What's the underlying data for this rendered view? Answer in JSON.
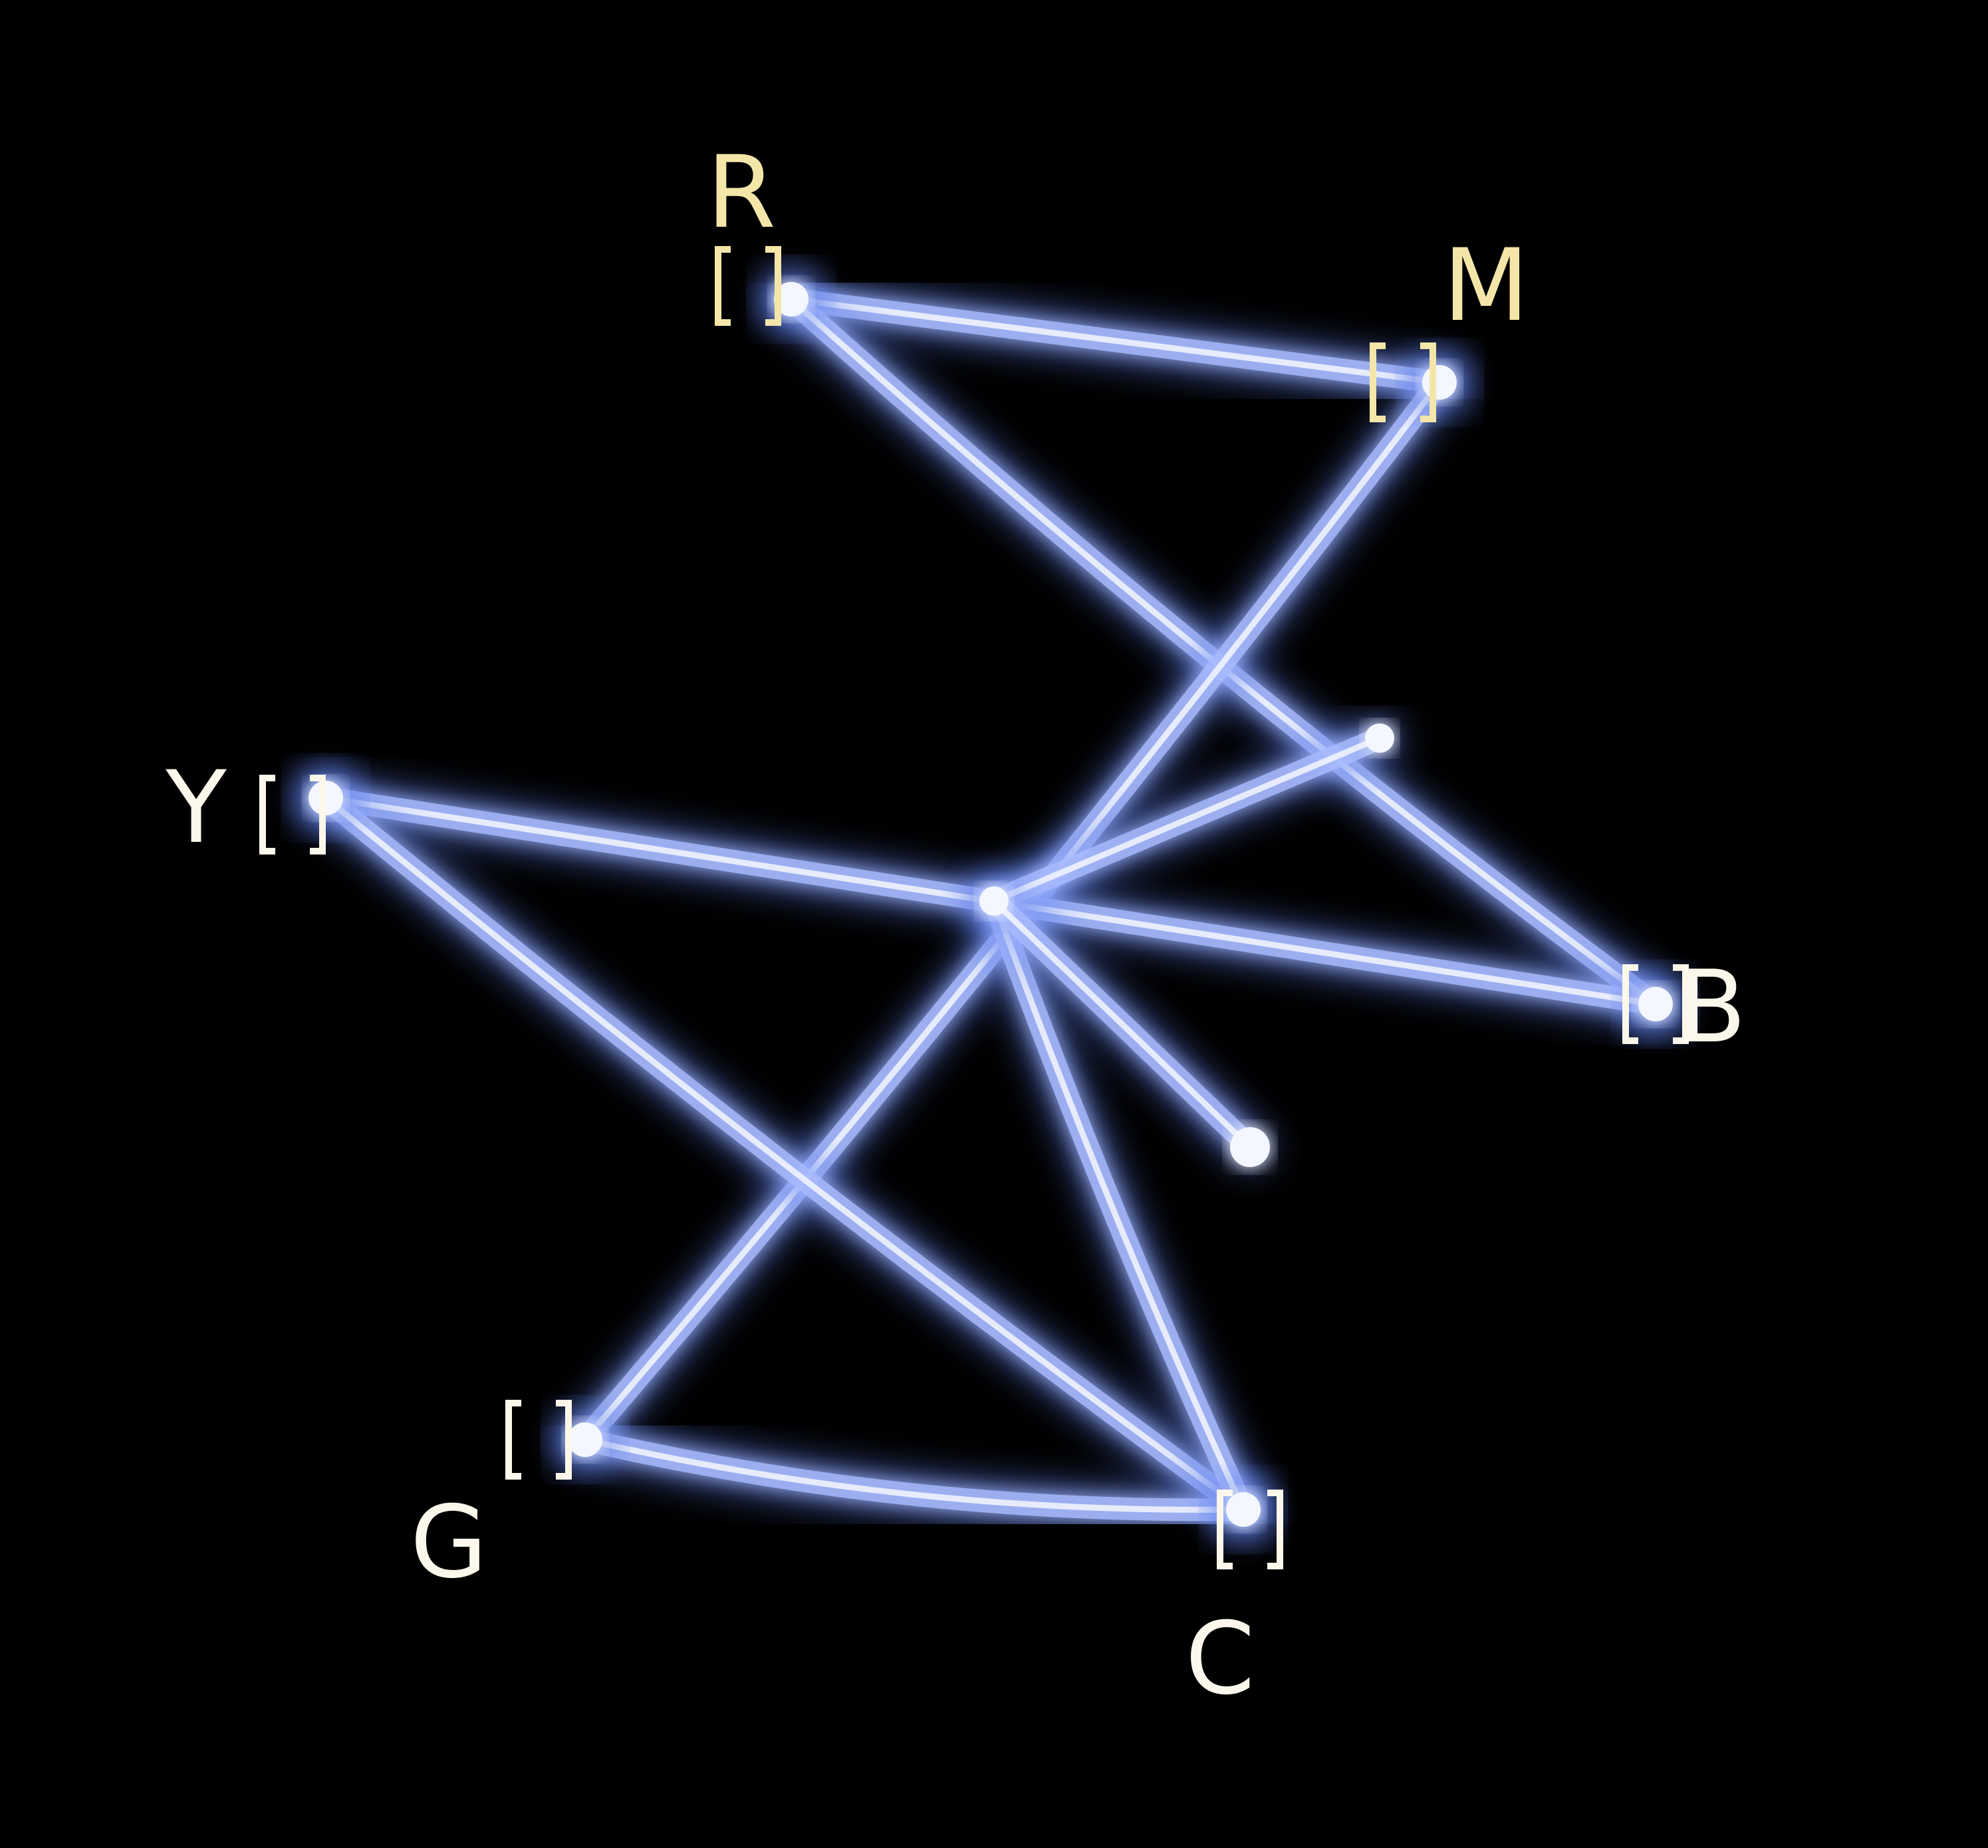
{
  "display": {
    "background_color": "#000000",
    "trace_color": "#a9bbff",
    "trace_glow_color": "#5f7fe8",
    "trace_core_color": "#f4f7ff",
    "label_color": "#f4e6a8",
    "label_color_white": "#fbf7ea"
  },
  "nodes": [
    {
      "id": "R",
      "label": "R",
      "marker": "[ ]"
    },
    {
      "id": "M",
      "label": "M",
      "marker": "[ ]"
    },
    {
      "id": "Y",
      "label": "Y",
      "marker": "[ ]"
    },
    {
      "id": "B",
      "label": "B",
      "marker": "[ ]"
    },
    {
      "id": "G",
      "label": "G",
      "marker": "[ ]"
    },
    {
      "id": "C",
      "label": "C",
      "marker": "[ ]"
    }
  ],
  "edges": [
    {
      "from": "R",
      "to": "M"
    },
    {
      "from": "R",
      "to": "B"
    },
    {
      "from": "M",
      "to": "G"
    },
    {
      "from": "Y",
      "to": "B"
    },
    {
      "from": "Y",
      "to": "C"
    },
    {
      "from": "G",
      "to": "C"
    },
    {
      "from": "C",
      "to": "hub"
    },
    {
      "from": "hub",
      "to": "junction"
    }
  ],
  "trailing_stroke": {
    "from": "hub",
    "to": "stroke-end"
  }
}
